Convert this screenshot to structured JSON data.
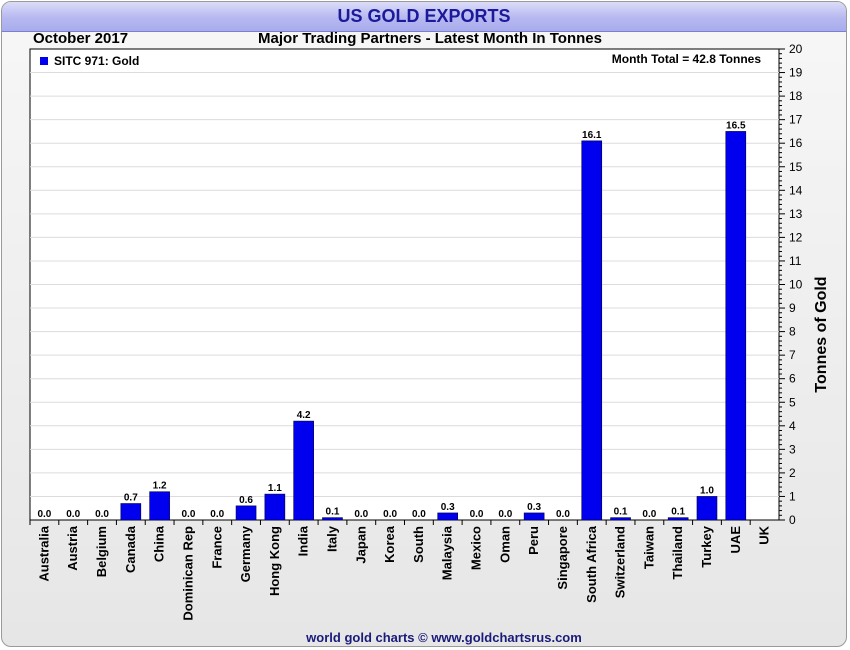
{
  "chart_data": {
    "type": "bar",
    "title": "US GOLD EXPORTS",
    "subtitle": "Major Trading Partners - Latest Month In Tonnes",
    "period": "October 2017",
    "annotation": "Month Total = 42.8 Tonnes",
    "legend": "SITC 971: Gold",
    "legend_position": "top-left",
    "ylabel": "Tonnes of Gold",
    "xlabel": "",
    "ylim": [
      0,
      20
    ],
    "yticks": [
      "0",
      "1",
      "2",
      "3",
      "4",
      "5",
      "6",
      "7",
      "8",
      "9",
      "10",
      "11",
      "12",
      "13",
      "14",
      "15",
      "16",
      "17",
      "18",
      "19",
      "20"
    ],
    "y_axis_side": "right",
    "grid": true,
    "categories": [
      "Australia",
      "Austria",
      "Belgium",
      "Canada",
      "China",
      "Dominican Rep",
      "France",
      "Germany",
      "Hong Kong",
      "India",
      "Italy",
      "Japan",
      "Korea",
      "South",
      "Malaysia",
      "Mexico",
      "Oman",
      "Peru",
      "Singapore",
      "South Africa",
      "Switzerland",
      "Taiwan",
      "Thailand",
      "Turkey",
      "UAE",
      "UK"
    ],
    "values": [
      0.0,
      0.0,
      0.0,
      0.7,
      1.2,
      0.0,
      0.0,
      0.6,
      1.1,
      4.2,
      0.1,
      0.0,
      0.0,
      0.0,
      0.3,
      0.0,
      0.0,
      0.3,
      0.0,
      16.1,
      0.1,
      0.0,
      0.1,
      1.0,
      16.5,
      null
    ],
    "value_labels": [
      "0.0",
      "0.0",
      "0.0",
      "0.7",
      "1.2",
      "0.0",
      "0.0",
      "0.6",
      "1.1",
      "4.2",
      "0.1",
      "0.0",
      "0.0",
      "0.0",
      "0.3",
      "0.0",
      "0.0",
      "0.3",
      "0.0",
      "16.1",
      "0.1",
      "0.0",
      "0.1",
      "1.0",
      "16.5",
      ""
    ],
    "bar_color": "#0000ee",
    "footer": "world gold charts © www.goldchartsrus.com"
  }
}
